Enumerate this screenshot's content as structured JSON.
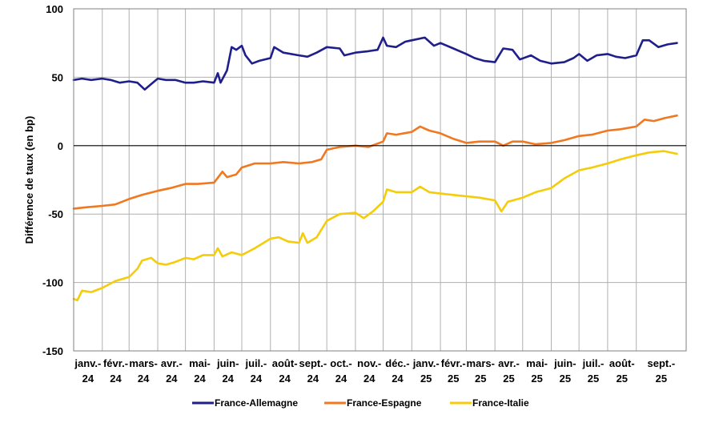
{
  "chart_data": {
    "type": "line",
    "title": "",
    "ylabel": "Différence de taux (en bp)",
    "xlabel": "",
    "ylim": [
      -150,
      100
    ],
    "yticks": [
      100,
      50,
      0,
      -50,
      -100,
      -150
    ],
    "ytick_labels": [
      "100",
      "50",
      "0",
      "-50",
      "-100",
      "-150"
    ],
    "grid": true,
    "legend_position": "bottom",
    "months": [
      {
        "label": "janv.-",
        "year": "24"
      },
      {
        "label": "févr.-",
        "year": "24"
      },
      {
        "label": "mars-",
        "year": "24"
      },
      {
        "label": "avr.-",
        "year": "24"
      },
      {
        "label": "mai-",
        "year": "24"
      },
      {
        "label": "juin-",
        "year": "24"
      },
      {
        "label": "juil.-",
        "year": "24"
      },
      {
        "label": "août-",
        "year": "24"
      },
      {
        "label": "sept.-",
        "year": "24"
      },
      {
        "label": "oct.-",
        "year": "24"
      },
      {
        "label": "nov.-",
        "year": "24"
      },
      {
        "label": "déc.-",
        "year": "24"
      },
      {
        "label": "janv.-",
        "year": "25"
      },
      {
        "label": "févr.-",
        "year": "25"
      },
      {
        "label": "mars-",
        "year": "25"
      },
      {
        "label": "avr.-",
        "year": "25"
      },
      {
        "label": "mai-",
        "year": "25"
      },
      {
        "label": "juin-",
        "year": "25"
      },
      {
        "label": "juil.-",
        "year": "25"
      },
      {
        "label": "août-",
        "year": "25"
      },
      {
        "label": "sept.-",
        "year": "25"
      }
    ],
    "series": [
      {
        "name": "France-Allemagne",
        "color": "#1f1f8c",
        "points": [
          [
            "2024-01-01",
            48
          ],
          [
            "2024-01-10",
            49
          ],
          [
            "2024-01-20",
            48
          ],
          [
            "2024-02-01",
            49
          ],
          [
            "2024-02-10",
            48
          ],
          [
            "2024-02-20",
            46
          ],
          [
            "2024-03-01",
            47
          ],
          [
            "2024-03-10",
            46
          ],
          [
            "2024-03-18",
            41
          ],
          [
            "2024-03-25",
            45
          ],
          [
            "2024-04-01",
            49
          ],
          [
            "2024-04-10",
            48
          ],
          [
            "2024-04-20",
            48
          ],
          [
            "2024-05-01",
            46
          ],
          [
            "2024-05-10",
            46
          ],
          [
            "2024-05-20",
            47
          ],
          [
            "2024-06-01",
            46
          ],
          [
            "2024-06-05",
            53
          ],
          [
            "2024-06-08",
            46
          ],
          [
            "2024-06-15",
            55
          ],
          [
            "2024-06-20",
            72
          ],
          [
            "2024-06-25",
            70
          ],
          [
            "2024-07-01",
            73
          ],
          [
            "2024-07-05",
            66
          ],
          [
            "2024-07-12",
            60
          ],
          [
            "2024-07-20",
            62
          ],
          [
            "2024-08-01",
            64
          ],
          [
            "2024-08-05",
            72
          ],
          [
            "2024-08-15",
            68
          ],
          [
            "2024-09-01",
            66
          ],
          [
            "2024-09-10",
            65
          ],
          [
            "2024-09-20",
            68
          ],
          [
            "2024-10-01",
            72
          ],
          [
            "2024-10-15",
            71
          ],
          [
            "2024-10-20",
            66
          ],
          [
            "2024-11-01",
            68
          ],
          [
            "2024-11-15",
            69
          ],
          [
            "2024-11-25",
            70
          ],
          [
            "2024-12-01",
            79
          ],
          [
            "2024-12-05",
            73
          ],
          [
            "2024-12-15",
            72
          ],
          [
            "2024-12-25",
            76
          ],
          [
            "2025-01-01",
            77
          ],
          [
            "2025-01-15",
            79
          ],
          [
            "2025-01-25",
            73
          ],
          [
            "2025-02-01",
            75
          ],
          [
            "2025-02-15",
            71
          ],
          [
            "2025-03-01",
            67
          ],
          [
            "2025-03-10",
            64
          ],
          [
            "2025-03-20",
            62
          ],
          [
            "2025-04-01",
            61
          ],
          [
            "2025-04-10",
            71
          ],
          [
            "2025-04-20",
            70
          ],
          [
            "2025-04-28",
            63
          ],
          [
            "2025-05-10",
            66
          ],
          [
            "2025-05-20",
            62
          ],
          [
            "2025-06-01",
            60
          ],
          [
            "2025-06-15",
            61
          ],
          [
            "2025-06-25",
            64
          ],
          [
            "2025-07-01",
            67
          ],
          [
            "2025-07-10",
            62
          ],
          [
            "2025-07-20",
            66
          ],
          [
            "2025-08-01",
            67
          ],
          [
            "2025-08-10",
            65
          ],
          [
            "2025-08-20",
            64
          ],
          [
            "2025-09-01",
            66
          ],
          [
            "2025-09-08",
            77
          ],
          [
            "2025-09-15",
            77
          ],
          [
            "2025-09-25",
            72
          ],
          [
            "2025-10-05",
            74
          ],
          [
            "2025-10-15",
            75
          ]
        ]
      },
      {
        "name": "France-Espagne",
        "color": "#f07820",
        "points": [
          [
            "2024-01-01",
            -46
          ],
          [
            "2024-01-15",
            -45
          ],
          [
            "2024-02-01",
            -44
          ],
          [
            "2024-02-15",
            -43
          ],
          [
            "2024-03-01",
            -39
          ],
          [
            "2024-03-15",
            -36
          ],
          [
            "2024-04-01",
            -33
          ],
          [
            "2024-04-15",
            -31
          ],
          [
            "2024-05-01",
            -28
          ],
          [
            "2024-05-15",
            -28
          ],
          [
            "2024-06-01",
            -27
          ],
          [
            "2024-06-10",
            -19
          ],
          [
            "2024-06-15",
            -23
          ],
          [
            "2024-06-25",
            -21
          ],
          [
            "2024-07-01",
            -16
          ],
          [
            "2024-07-15",
            -13
          ],
          [
            "2024-08-01",
            -13
          ],
          [
            "2024-08-15",
            -12
          ],
          [
            "2024-09-01",
            -13
          ],
          [
            "2024-09-15",
            -12
          ],
          [
            "2024-09-25",
            -10
          ],
          [
            "2024-10-01",
            -3
          ],
          [
            "2024-10-15",
            -1
          ],
          [
            "2024-11-01",
            0
          ],
          [
            "2024-11-15",
            -1
          ],
          [
            "2024-12-01",
            3
          ],
          [
            "2024-12-05",
            9
          ],
          [
            "2024-12-15",
            8
          ],
          [
            "2025-01-01",
            10
          ],
          [
            "2025-01-10",
            14
          ],
          [
            "2025-01-20",
            11
          ],
          [
            "2025-02-01",
            9
          ],
          [
            "2025-02-15",
            5
          ],
          [
            "2025-03-01",
            2
          ],
          [
            "2025-03-15",
            3
          ],
          [
            "2025-04-01",
            3
          ],
          [
            "2025-04-10",
            0
          ],
          [
            "2025-04-20",
            3
          ],
          [
            "2025-05-01",
            3
          ],
          [
            "2025-05-15",
            1
          ],
          [
            "2025-06-01",
            2
          ],
          [
            "2025-06-15",
            4
          ],
          [
            "2025-07-01",
            7
          ],
          [
            "2025-07-15",
            8
          ],
          [
            "2025-08-01",
            11
          ],
          [
            "2025-08-15",
            12
          ],
          [
            "2025-09-01",
            14
          ],
          [
            "2025-09-10",
            19
          ],
          [
            "2025-09-20",
            18
          ],
          [
            "2025-10-01",
            20
          ],
          [
            "2025-10-15",
            22
          ]
        ]
      },
      {
        "name": "France-Italie",
        "color": "#f5cc0a",
        "points": [
          [
            "2024-01-01",
            -112
          ],
          [
            "2024-01-05",
            -113
          ],
          [
            "2024-01-10",
            -106
          ],
          [
            "2024-01-20",
            -107
          ],
          [
            "2024-02-01",
            -104
          ],
          [
            "2024-02-15",
            -99
          ],
          [
            "2024-03-01",
            -96
          ],
          [
            "2024-03-10",
            -90
          ],
          [
            "2024-03-15",
            -84
          ],
          [
            "2024-03-25",
            -82
          ],
          [
            "2024-04-01",
            -86
          ],
          [
            "2024-04-10",
            -87
          ],
          [
            "2024-04-20",
            -85
          ],
          [
            "2024-05-01",
            -82
          ],
          [
            "2024-05-10",
            -83
          ],
          [
            "2024-05-20",
            -80
          ],
          [
            "2024-06-01",
            -80
          ],
          [
            "2024-06-05",
            -75
          ],
          [
            "2024-06-10",
            -81
          ],
          [
            "2024-06-20",
            -78
          ],
          [
            "2024-07-01",
            -80
          ],
          [
            "2024-07-15",
            -75
          ],
          [
            "2024-08-01",
            -68
          ],
          [
            "2024-08-10",
            -67
          ],
          [
            "2024-08-20",
            -70
          ],
          [
            "2024-09-01",
            -71
          ],
          [
            "2024-09-05",
            -64
          ],
          [
            "2024-09-10",
            -71
          ],
          [
            "2024-09-20",
            -67
          ],
          [
            "2024-10-01",
            -55
          ],
          [
            "2024-10-15",
            -50
          ],
          [
            "2024-11-01",
            -49
          ],
          [
            "2024-11-10",
            -53
          ],
          [
            "2024-11-20",
            -48
          ],
          [
            "2024-12-01",
            -41
          ],
          [
            "2024-12-05",
            -32
          ],
          [
            "2024-12-15",
            -34
          ],
          [
            "2025-01-01",
            -34
          ],
          [
            "2025-01-10",
            -30
          ],
          [
            "2025-01-20",
            -34
          ],
          [
            "2025-02-01",
            -35
          ],
          [
            "2025-02-15",
            -36
          ],
          [
            "2025-03-01",
            -37
          ],
          [
            "2025-03-15",
            -38
          ],
          [
            "2025-04-01",
            -40
          ],
          [
            "2025-04-08",
            -48
          ],
          [
            "2025-04-15",
            -41
          ],
          [
            "2025-05-01",
            -38
          ],
          [
            "2025-05-15",
            -34
          ],
          [
            "2025-06-01",
            -31
          ],
          [
            "2025-06-15",
            -24
          ],
          [
            "2025-07-01",
            -18
          ],
          [
            "2025-07-15",
            -16
          ],
          [
            "2025-08-01",
            -13
          ],
          [
            "2025-08-15",
            -10
          ],
          [
            "2025-09-01",
            -7
          ],
          [
            "2025-09-15",
            -5
          ],
          [
            "2025-10-01",
            -4
          ],
          [
            "2025-10-15",
            -6
          ]
        ]
      }
    ]
  }
}
